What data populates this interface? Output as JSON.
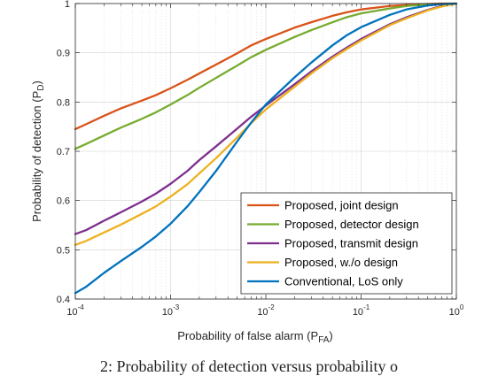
{
  "caption": "2: Probability of detection versus probability o",
  "chart_data": {
    "type": "line",
    "xscale": "log",
    "xlim": [
      0.0001,
      1
    ],
    "ylim": [
      0.4,
      1
    ],
    "grid": true,
    "legend_position": "bottom-right",
    "xlabel": {
      "base": "Probability of false alarm (P",
      "sub": "FA",
      "close": ")"
    },
    "ylabel": {
      "base": "Probability of detection (P",
      "sub": "D",
      "close": ")"
    },
    "xticks": [
      {
        "value": 0.0001,
        "base": "10",
        "exp": "-4"
      },
      {
        "value": 0.001,
        "base": "10",
        "exp": "-3"
      },
      {
        "value": 0.01,
        "base": "10",
        "exp": "-2"
      },
      {
        "value": 0.1,
        "base": "10",
        "exp": "-1"
      },
      {
        "value": 1,
        "base": "10",
        "exp": "0"
      }
    ],
    "yticks": [
      {
        "value": 0.4,
        "label": "0.4"
      },
      {
        "value": 0.5,
        "label": "0.5"
      },
      {
        "value": 0.6,
        "label": "0.6"
      },
      {
        "value": 0.7,
        "label": "0.7"
      },
      {
        "value": 0.8,
        "label": "0.8"
      },
      {
        "value": 0.9,
        "label": "0.9"
      },
      {
        "value": 1,
        "label": "1"
      }
    ],
    "series": [
      {
        "name": "Proposed, joint design",
        "color": "#D95319",
        "points": [
          [
            0.0001,
            0.745
          ],
          [
            0.00013,
            0.755
          ],
          [
            0.0002,
            0.772
          ],
          [
            0.0003,
            0.787
          ],
          [
            0.0005,
            0.803
          ],
          [
            0.0007,
            0.814
          ],
          [
            0.001,
            0.828
          ],
          [
            0.0015,
            0.845
          ],
          [
            0.002,
            0.858
          ],
          [
            0.003,
            0.876
          ],
          [
            0.005,
            0.899
          ],
          [
            0.007,
            0.915
          ],
          [
            0.01,
            0.928
          ],
          [
            0.02,
            0.951
          ],
          [
            0.03,
            0.962
          ],
          [
            0.05,
            0.975
          ],
          [
            0.07,
            0.982
          ],
          [
            0.1,
            0.988
          ],
          [
            0.2,
            0.995
          ],
          [
            0.3,
            0.997
          ],
          [
            0.5,
            0.999
          ],
          [
            0.7,
            1.0
          ],
          [
            1,
            1.0
          ]
        ]
      },
      {
        "name": "Proposed, detector design",
        "color": "#77AC30",
        "points": [
          [
            0.0001,
            0.705
          ],
          [
            0.00013,
            0.715
          ],
          [
            0.0002,
            0.732
          ],
          [
            0.0003,
            0.748
          ],
          [
            0.0005,
            0.766
          ],
          [
            0.0007,
            0.779
          ],
          [
            0.001,
            0.795
          ],
          [
            0.0015,
            0.814
          ],
          [
            0.002,
            0.829
          ],
          [
            0.003,
            0.849
          ],
          [
            0.005,
            0.874
          ],
          [
            0.007,
            0.891
          ],
          [
            0.01,
            0.906
          ],
          [
            0.02,
            0.932
          ],
          [
            0.03,
            0.946
          ],
          [
            0.05,
            0.962
          ],
          [
            0.07,
            0.972
          ],
          [
            0.1,
            0.98
          ],
          [
            0.2,
            0.99
          ],
          [
            0.3,
            0.995
          ],
          [
            0.5,
            0.998
          ],
          [
            0.7,
            0.999
          ],
          [
            1,
            1.0
          ]
        ]
      },
      {
        "name": "Proposed, transmit design",
        "color": "#7E2F8E",
        "points": [
          [
            0.0001,
            0.532
          ],
          [
            0.00013,
            0.54
          ],
          [
            0.0002,
            0.559
          ],
          [
            0.0003,
            0.576
          ],
          [
            0.0005,
            0.598
          ],
          [
            0.0007,
            0.614
          ],
          [
            0.001,
            0.634
          ],
          [
            0.0015,
            0.66
          ],
          [
            0.002,
            0.682
          ],
          [
            0.003,
            0.71
          ],
          [
            0.005,
            0.746
          ],
          [
            0.007,
            0.77
          ],
          [
            0.01,
            0.793
          ],
          [
            0.02,
            0.836
          ],
          [
            0.03,
            0.862
          ],
          [
            0.05,
            0.892
          ],
          [
            0.07,
            0.91
          ],
          [
            0.1,
            0.928
          ],
          [
            0.2,
            0.958
          ],
          [
            0.3,
            0.972
          ],
          [
            0.5,
            0.987
          ],
          [
            0.7,
            0.995
          ],
          [
            1,
            1.0
          ]
        ]
      },
      {
        "name": "Proposed, w./o design",
        "color": "#EDB120",
        "points": [
          [
            0.0001,
            0.51
          ],
          [
            0.00013,
            0.518
          ],
          [
            0.0002,
            0.535
          ],
          [
            0.0003,
            0.551
          ],
          [
            0.0005,
            0.573
          ],
          [
            0.0007,
            0.588
          ],
          [
            0.001,
            0.608
          ],
          [
            0.0015,
            0.633
          ],
          [
            0.002,
            0.655
          ],
          [
            0.003,
            0.686
          ],
          [
            0.005,
            0.728
          ],
          [
            0.007,
            0.757
          ],
          [
            0.01,
            0.785
          ],
          [
            0.02,
            0.831
          ],
          [
            0.03,
            0.858
          ],
          [
            0.05,
            0.889
          ],
          [
            0.07,
            0.907
          ],
          [
            0.1,
            0.925
          ],
          [
            0.2,
            0.956
          ],
          [
            0.3,
            0.97
          ],
          [
            0.5,
            0.986
          ],
          [
            0.7,
            0.994
          ],
          [
            1,
            1.0
          ]
        ]
      },
      {
        "name": "Conventional, LoS only",
        "color": "#0072BD",
        "points": [
          [
            0.0001,
            0.412
          ],
          [
            0.00013,
            0.425
          ],
          [
            0.0002,
            0.453
          ],
          [
            0.0003,
            0.477
          ],
          [
            0.0005,
            0.506
          ],
          [
            0.0007,
            0.527
          ],
          [
            0.001,
            0.553
          ],
          [
            0.0015,
            0.588
          ],
          [
            0.002,
            0.617
          ],
          [
            0.003,
            0.66
          ],
          [
            0.005,
            0.72
          ],
          [
            0.007,
            0.758
          ],
          [
            0.01,
            0.795
          ],
          [
            0.02,
            0.85
          ],
          [
            0.03,
            0.88
          ],
          [
            0.05,
            0.915
          ],
          [
            0.07,
            0.935
          ],
          [
            0.1,
            0.952
          ],
          [
            0.2,
            0.977
          ],
          [
            0.3,
            0.988
          ],
          [
            0.5,
            0.996
          ],
          [
            0.7,
            0.999
          ],
          [
            1,
            1.0
          ]
        ]
      }
    ]
  }
}
